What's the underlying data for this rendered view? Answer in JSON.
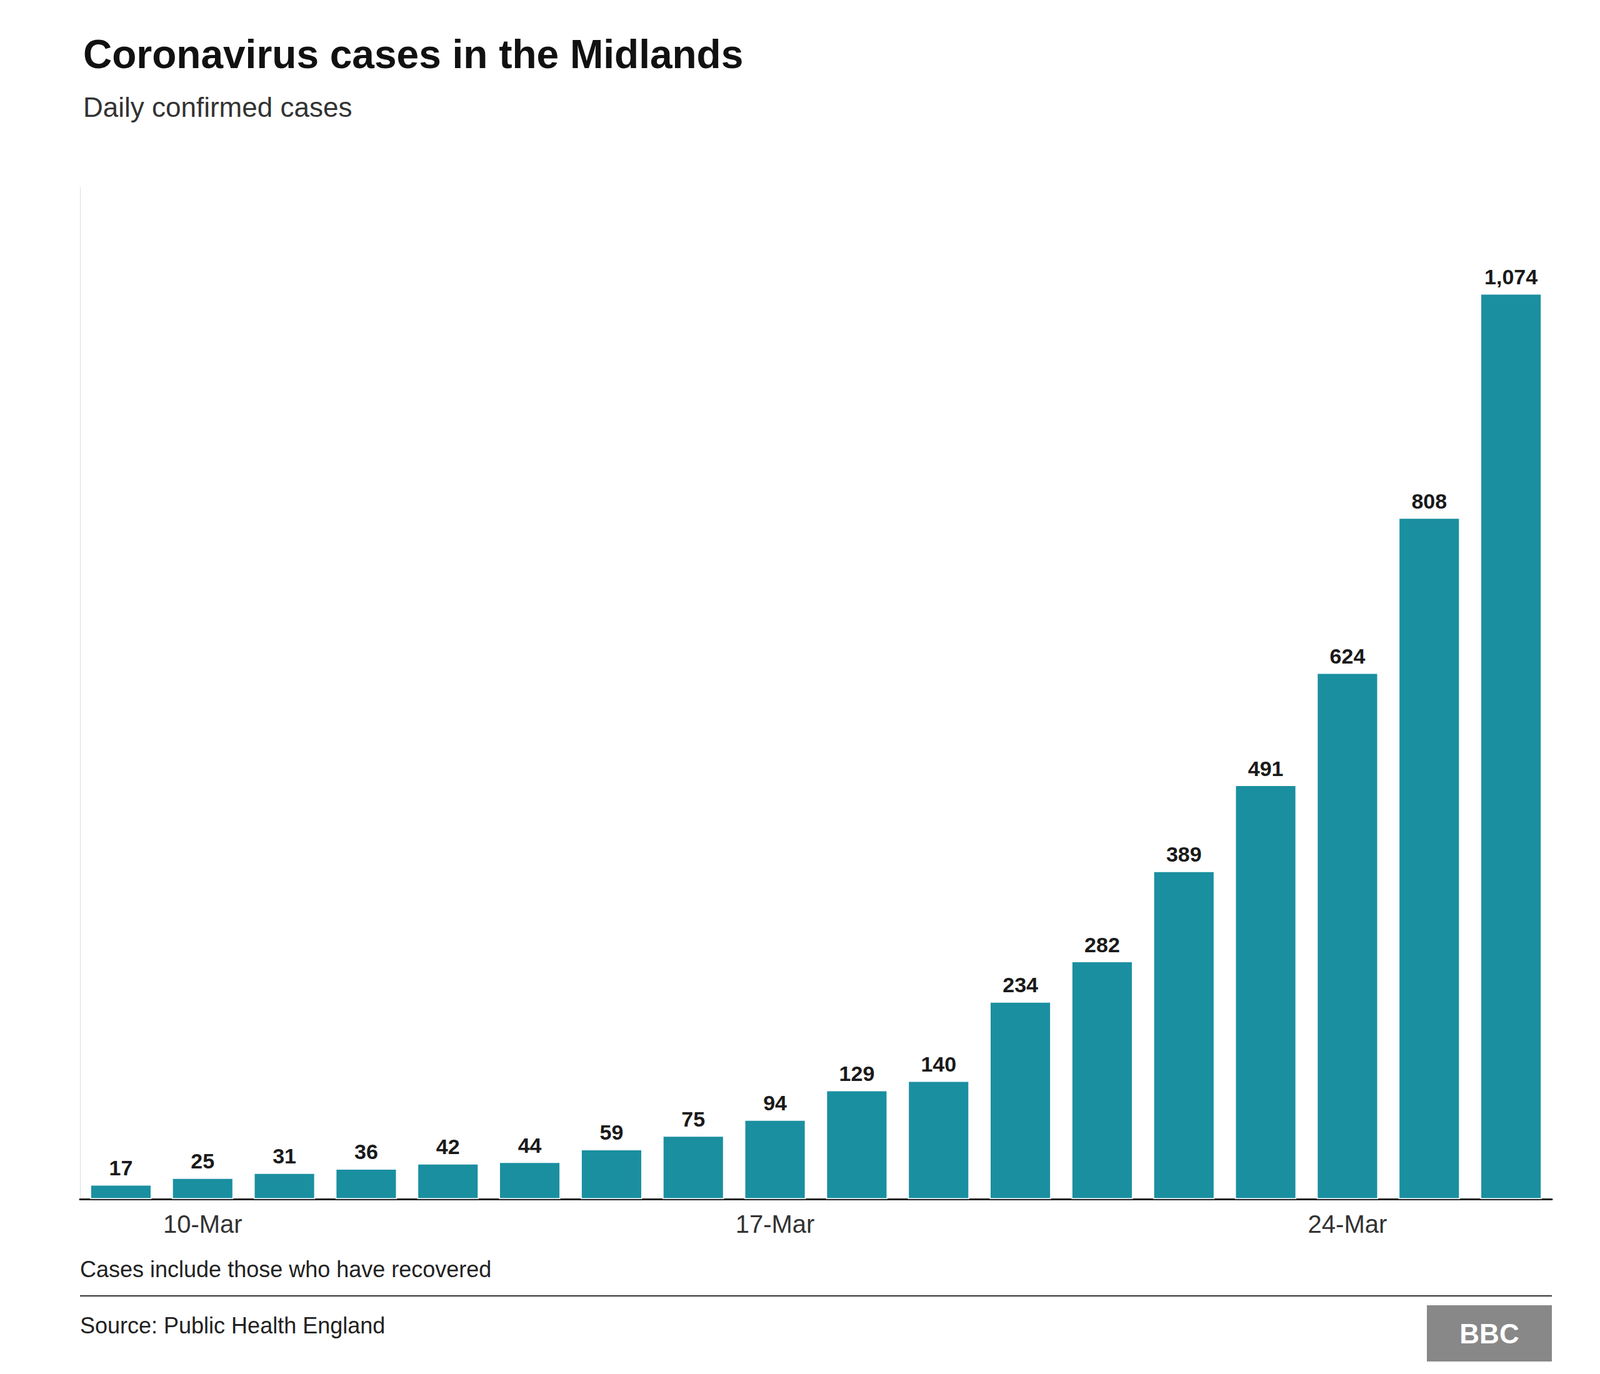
{
  "chart_data": {
    "type": "bar",
    "title": "Coronavirus cases in the Midlands",
    "subtitle": "Daily confirmed cases",
    "categories": [
      null,
      "10-Mar",
      null,
      null,
      null,
      null,
      null,
      null,
      "17-Mar",
      null,
      null,
      null,
      null,
      null,
      null,
      "24-Mar",
      null,
      null
    ],
    "values": [
      17,
      25,
      31,
      36,
      42,
      44,
      59,
      75,
      94,
      129,
      140,
      234,
      282,
      389,
      491,
      624,
      808,
      1074
    ],
    "value_labels": [
      "17",
      "25",
      "31",
      "36",
      "42",
      "44",
      "59",
      "75",
      "94",
      "129",
      "140",
      "234",
      "282",
      "389",
      "491",
      "624",
      "808",
      "1,074"
    ],
    "data_labels": true,
    "color": "#1a8fa0",
    "ylim": [
      0,
      1200
    ],
    "tick_labels": "x",
    "grid": false,
    "annotations": [
      "Cases include those who have recovered",
      "Source: Public Health England",
      "BBC"
    ]
  }
}
